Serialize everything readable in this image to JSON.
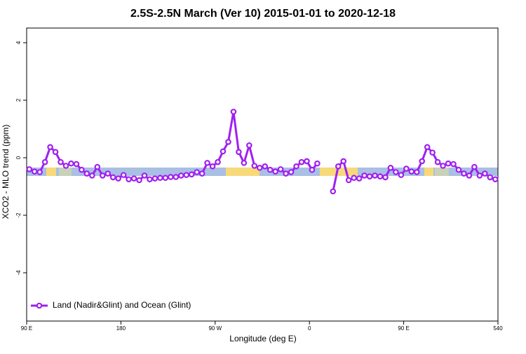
{
  "chart_data": {
    "type": "line",
    "title": "2.5S-2.5N March (Ver 10)   2015-01-01 to 2020-12-18",
    "x_label": "Longitude (deg E)",
    "y_label": "XCO2 - MLO trend (ppm)",
    "xlim": [
      90,
      540
    ],
    "ylim": [
      -5.68,
      4.51
    ],
    "xticks": [
      {
        "value": 90,
        "label": "90 E"
      },
      180,
      {
        "value": 270,
        "label": "90 W"
      },
      {
        "value": 360,
        "label": "0"
      },
      {
        "value": 450,
        "label": "90 E"
      },
      540
    ],
    "yticks": [
      -4,
      -2,
      0,
      2,
      4
    ],
    "legend": "bottom-left",
    "x": [
      92.5,
      97.5,
      102.5,
      107.5,
      112.5,
      117.5,
      122.5,
      127.5,
      132.5,
      137.5,
      142.5,
      147.5,
      152.5,
      157.5,
      162.5,
      167.5,
      172.5,
      177.5,
      182.5,
      187.5,
      192.5,
      197.5,
      202.5,
      207.5,
      212.5,
      217.5,
      222.5,
      227.5,
      232.5,
      237.5,
      242.5,
      247.5,
      252.5,
      257.5,
      262.5,
      267.5,
      272.5,
      277.5,
      282.5,
      287.5,
      292.5,
      297.5,
      302.5,
      307.5,
      312.5,
      317.5,
      322.5,
      327.5,
      332.5,
      337.5,
      342.5,
      347.5,
      352.5,
      357.5,
      362.5,
      367.5,
      372.5,
      377.5,
      382.5,
      387.5,
      392.5,
      397.5,
      402.5,
      407.5,
      412.5,
      417.5,
      422.5,
      427.5,
      432.5,
      437.5,
      442.5,
      447.5,
      452.5,
      457.5,
      462.5,
      467.5,
      472.5,
      477.5,
      482.5,
      487.5,
      492.5,
      497.5,
      502.5,
      507.5,
      512.5,
      517.5,
      522.5,
      527.5,
      532.5,
      537.5
    ],
    "series": [
      {
        "name": "Land (Nadir&Glint) and Ocean (Glint)",
        "color": "#a020f0",
        "values": [
          -0.4,
          -0.48,
          -0.5,
          -0.15,
          0.37,
          0.2,
          -0.15,
          -0.28,
          -0.2,
          -0.22,
          -0.42,
          -0.55,
          -0.62,
          -0.32,
          -0.62,
          -0.55,
          -0.68,
          -0.72,
          -0.6,
          -0.75,
          -0.72,
          -0.78,
          -0.62,
          -0.75,
          -0.72,
          -0.7,
          -0.7,
          -0.67,
          -0.67,
          -0.62,
          -0.6,
          -0.58,
          -0.5,
          -0.55,
          -0.18,
          -0.3,
          -0.15,
          0.22,
          0.55,
          1.6,
          0.2,
          -0.18,
          0.43,
          -0.28,
          -0.35,
          -0.3,
          -0.42,
          -0.48,
          -0.4,
          -0.55,
          -0.5,
          -0.3,
          -0.15,
          -0.12,
          -0.42,
          -0.2,
          null,
          null,
          -1.17,
          -0.3,
          -0.12,
          -0.78,
          -0.7,
          -0.72,
          -0.62,
          -0.65,
          -0.62,
          -0.65,
          -0.68,
          -0.35,
          -0.5,
          -0.6,
          -0.38,
          -0.48,
          -0.5,
          -0.12,
          0.37,
          0.18,
          -0.15,
          -0.28,
          -0.2,
          -0.22,
          -0.42,
          -0.55,
          -0.62,
          -0.32,
          -0.62,
          -0.55,
          -0.68,
          -0.75
        ]
      }
    ]
  }
}
